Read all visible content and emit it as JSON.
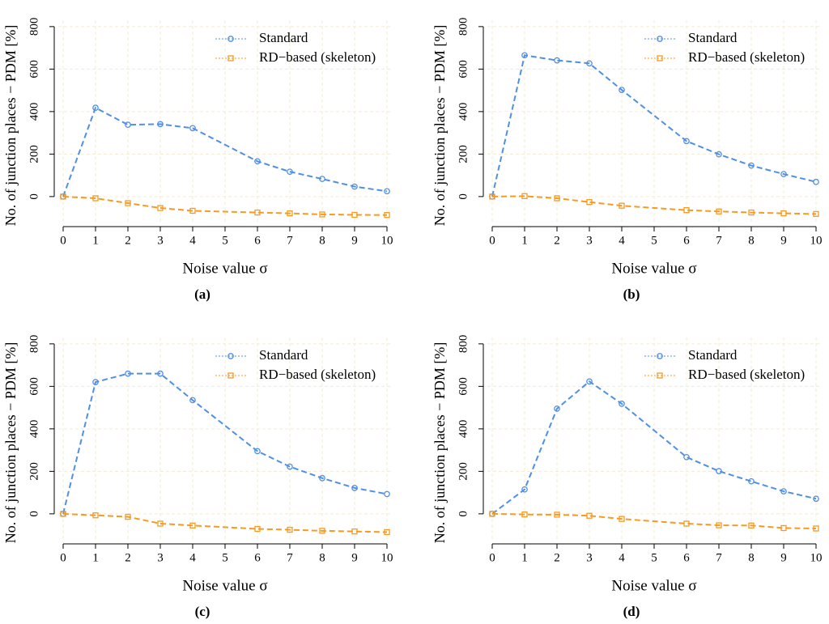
{
  "chart_data": [
    {
      "type": "line",
      "caption": "(a)",
      "x_label": "Noise value σ",
      "y_label": "No. of junction places − PDM [%]",
      "x": [
        0,
        1,
        2,
        3,
        4,
        6,
        7,
        8,
        9,
        10
      ],
      "series": [
        {
          "name": "Standard",
          "color": "#4f8fe6",
          "marker": "circle",
          "values": [
            0,
            418,
            338,
            341,
            322,
            166,
            117,
            83,
            47,
            25
          ]
        },
        {
          "name": "RD−based (skeleton)",
          "color": "#f59a23",
          "marker": "square",
          "values": [
            0,
            -8,
            -31,
            -54,
            -67,
            -75,
            -79,
            -84,
            -86,
            -87
          ]
        }
      ],
      "xlim": [
        0,
        10
      ],
      "ylim": [
        -130,
        830
      ],
      "xticks": [
        0,
        1,
        2,
        3,
        4,
        5,
        6,
        7,
        8,
        9,
        10
      ],
      "yticks": [
        0,
        200,
        400,
        600,
        800
      ],
      "grid": true
    },
    {
      "type": "line",
      "caption": "(b)",
      "x_label": "Noise value σ",
      "y_label": "No. of junction places − PDM [%]",
      "x": [
        0,
        1,
        2,
        3,
        4,
        6,
        7,
        8,
        9,
        10
      ],
      "series": [
        {
          "name": "Standard",
          "color": "#4f8fe6",
          "marker": "circle",
          "values": [
            0,
            665,
            641,
            627,
            502,
            261,
            199,
            146,
            106,
            69
          ]
        },
        {
          "name": "RD−based (skeleton)",
          "color": "#f59a23",
          "marker": "square",
          "values": [
            0,
            2,
            -8,
            -26,
            -43,
            -64,
            -70,
            -75,
            -79,
            -82
          ]
        }
      ],
      "xlim": [
        0,
        10
      ],
      "ylim": [
        -130,
        830
      ],
      "xticks": [
        0,
        1,
        2,
        3,
        4,
        5,
        6,
        7,
        8,
        9,
        10
      ],
      "yticks": [
        0,
        200,
        400,
        600,
        800
      ],
      "grid": true
    },
    {
      "type": "line",
      "caption": "(c)",
      "x_label": "Noise value σ",
      "y_label": "No. of junction places − PDM [%]",
      "x": [
        0,
        1,
        2,
        3,
        4,
        6,
        7,
        8,
        9,
        10
      ],
      "series": [
        {
          "name": "Standard",
          "color": "#4f8fe6",
          "marker": "circle",
          "values": [
            0,
            620,
            660,
            660,
            535,
            295,
            222,
            168,
            122,
            93
          ]
        },
        {
          "name": "RD−based (skeleton)",
          "color": "#f59a23",
          "marker": "square",
          "values": [
            0,
            -7,
            -14,
            -46,
            -55,
            -71,
            -75,
            -80,
            -83,
            -86
          ]
        }
      ],
      "xlim": [
        0,
        10
      ],
      "ylim": [
        -130,
        830
      ],
      "xticks": [
        0,
        1,
        2,
        3,
        4,
        5,
        6,
        7,
        8,
        9,
        10
      ],
      "yticks": [
        0,
        200,
        400,
        600,
        800
      ],
      "grid": true
    },
    {
      "type": "line",
      "caption": "(d)",
      "x_label": "Noise value σ",
      "y_label": "No. of junction places − PDM [%]",
      "x": [
        0,
        1,
        2,
        3,
        4,
        6,
        7,
        8,
        9,
        10
      ],
      "series": [
        {
          "name": "Standard",
          "color": "#4f8fe6",
          "marker": "circle",
          "values": [
            0,
            115,
            495,
            623,
            518,
            267,
            201,
            153,
            106,
            71
          ]
        },
        {
          "name": "RD−based (skeleton)",
          "color": "#f59a23",
          "marker": "square",
          "values": [
            0,
            -3,
            -4,
            -9,
            -24,
            -46,
            -54,
            -55,
            -67,
            -69
          ]
        }
      ],
      "xlim": [
        0,
        10
      ],
      "ylim": [
        -130,
        830
      ],
      "xticks": [
        0,
        1,
        2,
        3,
        4,
        5,
        6,
        7,
        8,
        9,
        10
      ],
      "yticks": [
        0,
        200,
        400,
        600,
        800
      ],
      "grid": true
    }
  ]
}
